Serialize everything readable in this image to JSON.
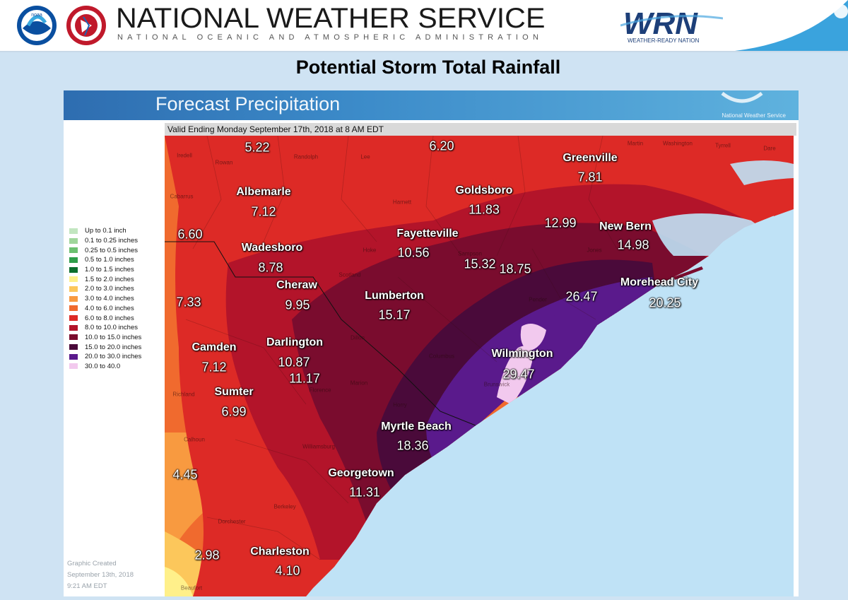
{
  "header": {
    "org_title": "NATIONAL WEATHER SERVICE",
    "org_subtitle": "NATIONAL OCEANIC AND ATMOSPHERIC ADMINISTRATION",
    "noaa_logo_text": "noaa",
    "wrn_logo_text": "WRN",
    "wrn_tagline": "WEATHER-READY NATION"
  },
  "page_title": "Potential Storm Total Rainfall",
  "panel": {
    "banner_title": "Forecast Precipitation",
    "banner_logo_text": "National Weather Service",
    "valid_text": "Valid Ending Monday September 17th, 2018 at 8 AM EDT",
    "created_lines": [
      "Graphic Created",
      "September 13th, 2018",
      "9:21 AM EDT"
    ]
  },
  "legend": [
    {
      "label": "Up to 0.1 inch",
      "color": "#c2e6c0"
    },
    {
      "label": "0.1 to 0.25 inches",
      "color": "#9fd69b"
    },
    {
      "label": "0.25 to 0.5 inches",
      "color": "#6cc070"
    },
    {
      "label": "0.5 to 1.0 inches",
      "color": "#2f9e4a"
    },
    {
      "label": "1.0 to 1.5 inches",
      "color": "#0c6e2d"
    },
    {
      "label": "1.5 to 2.0 inches",
      "color": "#fff08a"
    },
    {
      "label": "2.0 to 3.0 inches",
      "color": "#fcc75b"
    },
    {
      "label": "3.0 to 4.0 inches",
      "color": "#f89a40"
    },
    {
      "label": "4.0 to 6.0 inches",
      "color": "#f06a2e"
    },
    {
      "label": "6.0 to 8.0 inches",
      "color": "#dd2a26"
    },
    {
      "label": "8.0 to 10.0 inches",
      "color": "#b3142a"
    },
    {
      "label": "10.0 to 15.0 inches",
      "color": "#7a0c2e"
    },
    {
      "label": "15.0 to 20.0 inches",
      "color": "#4a0a3a"
    },
    {
      "label": "20.0 to 30.0 inches",
      "color": "#5a1a8c"
    },
    {
      "label": "30.0 to 40.0",
      "color": "#f2c9ee"
    }
  ],
  "places": {
    "greenville": {
      "name": "Greenville",
      "value": "7.81"
    },
    "goldsboro": {
      "name": "Goldsboro",
      "value": "11.83"
    },
    "albemarle": {
      "name": "Albemarle",
      "value": "7.12"
    },
    "fayetteville": {
      "name": "Fayetteville",
      "value": "10.56"
    },
    "new_bern": {
      "name": "New Bern",
      "value": "14.98"
    },
    "wadesboro": {
      "name": "Wadesboro",
      "value": "8.78"
    },
    "cheraw": {
      "name": "Cheraw",
      "value": "9.95"
    },
    "lumberton": {
      "name": "Lumberton",
      "value": "15.17"
    },
    "morehead_city": {
      "name": "Morehead City",
      "value": "20.25"
    },
    "camden": {
      "name": "Camden",
      "value": "7.12"
    },
    "darlington": {
      "name": "Darlington",
      "value": "10.87"
    },
    "wilmington": {
      "name": "Wilmington",
      "value": "29.47"
    },
    "sumter": {
      "name": "Sumter",
      "value": "6.99"
    },
    "myrtle_beach": {
      "name": "Myrtle Beach",
      "value": "18.36"
    },
    "georgetown": {
      "name": "Georgetown",
      "value": "11.31"
    },
    "charleston": {
      "name": "Charleston",
      "value": "4.10"
    }
  },
  "extra_values": [
    "5.22",
    "6.20",
    "6.60",
    "12.99",
    "15.32",
    "18.75",
    "26.47",
    "7.33",
    "11.17",
    "4.45",
    "2.98"
  ],
  "counties": [
    "Iredell",
    "Rowan",
    "Randolph",
    "Lee",
    "Harnett",
    "Hoke",
    "Scotland",
    "Sampson",
    "Jones",
    "Dillon",
    "Columbus",
    "Pender",
    "Brunswick",
    "Marion",
    "Florence",
    "Horry",
    "Williamsburg",
    "Richland",
    "Calhoun",
    "Berkeley",
    "Dorchester",
    "Beaufort",
    "Martin",
    "Washington",
    "Tyrrell",
    "Dare",
    "Cabarrus"
  ]
}
